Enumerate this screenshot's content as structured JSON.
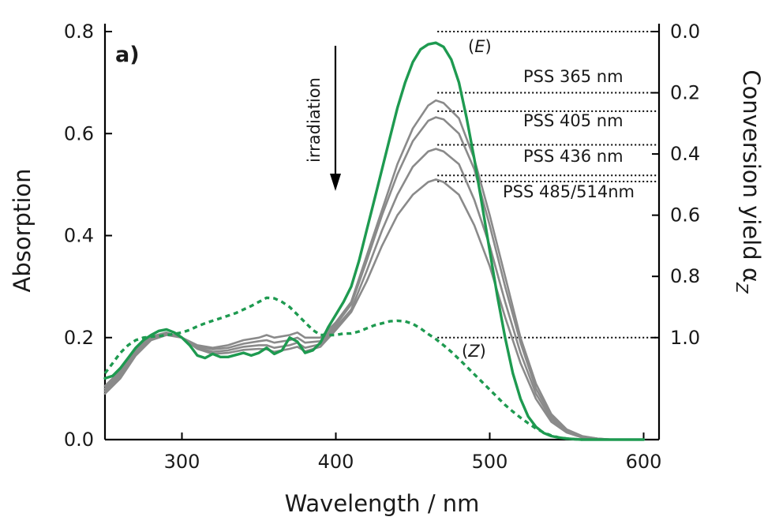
{
  "chart_data": {
    "type": "line",
    "panel_label": "a)",
    "xlabel": "Wavelength / nm",
    "ylabel": "Absorption",
    "y2label_main": "Conversion yield α",
    "y2label_sub": "Z",
    "xlim": [
      250,
      610
    ],
    "ylim": [
      0,
      0.8
    ],
    "y2lim": [
      0.0,
      1.0
    ],
    "xticks": [
      300,
      400,
      500,
      600
    ],
    "yticks": [
      0.0,
      0.2,
      0.4,
      0.6,
      0.8
    ],
    "y2ticks": [
      0.0,
      0.2,
      0.4,
      0.6,
      0.8,
      1.0
    ],
    "arrow_label": "irradiation",
    "colors": {
      "green": "#1e9a50",
      "gray": "#8a8a8a",
      "black": "#000000"
    },
    "series": [
      {
        "name": "(E)",
        "color": "#1e9a50",
        "style": "solid",
        "x": [
          250,
          255,
          260,
          265,
          270,
          275,
          280,
          285,
          290,
          295,
          300,
          305,
          310,
          315,
          320,
          325,
          330,
          335,
          340,
          345,
          350,
          355,
          360,
          365,
          370,
          375,
          380,
          385,
          390,
          395,
          400,
          405,
          410,
          415,
          420,
          425,
          430,
          435,
          440,
          445,
          450,
          455,
          460,
          465,
          470,
          475,
          480,
          485,
          490,
          495,
          500,
          505,
          510,
          515,
          520,
          525,
          530,
          535,
          540,
          545,
          550,
          555,
          560,
          570,
          580,
          590,
          600
        ],
        "y": [
          0.12,
          0.125,
          0.14,
          0.16,
          0.18,
          0.195,
          0.205,
          0.213,
          0.216,
          0.21,
          0.2,
          0.185,
          0.165,
          0.16,
          0.168,
          0.162,
          0.162,
          0.166,
          0.17,
          0.165,
          0.17,
          0.18,
          0.168,
          0.175,
          0.2,
          0.192,
          0.17,
          0.175,
          0.19,
          0.22,
          0.245,
          0.27,
          0.3,
          0.35,
          0.41,
          0.47,
          0.53,
          0.59,
          0.65,
          0.7,
          0.74,
          0.765,
          0.775,
          0.778,
          0.77,
          0.745,
          0.7,
          0.63,
          0.55,
          0.46,
          0.37,
          0.28,
          0.2,
          0.13,
          0.08,
          0.045,
          0.025,
          0.013,
          0.007,
          0.004,
          0.002,
          0.001,
          0.0,
          0.0,
          0.0,
          0.0,
          0.0
        ]
      },
      {
        "name": "(Z)",
        "color": "#1e9a50",
        "style": "dotted",
        "x": [
          250,
          255,
          260,
          265,
          270,
          275,
          280,
          285,
          290,
          295,
          300,
          305,
          310,
          315,
          320,
          325,
          330,
          335,
          340,
          345,
          350,
          355,
          360,
          365,
          370,
          375,
          380,
          385,
          390,
          395,
          400,
          405,
          410,
          415,
          420,
          425,
          430,
          435,
          440,
          445,
          450,
          455,
          460,
          465,
          470,
          475,
          480,
          485,
          490,
          495,
          500,
          505,
          510,
          515,
          520,
          525,
          530,
          535,
          540,
          545,
          550,
          555,
          560
        ],
        "y": [
          0.13,
          0.15,
          0.17,
          0.185,
          0.195,
          0.2,
          0.202,
          0.203,
          0.205,
          0.207,
          0.21,
          0.215,
          0.222,
          0.228,
          0.233,
          0.238,
          0.243,
          0.248,
          0.255,
          0.262,
          0.27,
          0.278,
          0.277,
          0.27,
          0.26,
          0.245,
          0.23,
          0.215,
          0.205,
          0.205,
          0.205,
          0.208,
          0.208,
          0.212,
          0.218,
          0.224,
          0.228,
          0.232,
          0.233,
          0.232,
          0.227,
          0.218,
          0.207,
          0.197,
          0.185,
          0.172,
          0.158,
          0.143,
          0.128,
          0.113,
          0.098,
          0.083,
          0.068,
          0.055,
          0.043,
          0.032,
          0.022,
          0.014,
          0.008,
          0.004,
          0.002,
          0.001,
          0.0
        ]
      },
      {
        "name": "PSS 365 nm",
        "color": "#8a8a8a",
        "style": "solid",
        "x": [
          250,
          260,
          270,
          280,
          290,
          300,
          310,
          320,
          330,
          340,
          350,
          355,
          360,
          370,
          375,
          380,
          390,
          400,
          410,
          420,
          430,
          440,
          450,
          460,
          465,
          470,
          480,
          490,
          500,
          510,
          520,
          530,
          540,
          550,
          560,
          570,
          580,
          600
        ],
        "y": [
          0.09,
          0.12,
          0.165,
          0.195,
          0.205,
          0.2,
          0.185,
          0.18,
          0.185,
          0.195,
          0.2,
          0.205,
          0.2,
          0.205,
          0.21,
          0.2,
          0.2,
          0.23,
          0.27,
          0.36,
          0.45,
          0.54,
          0.61,
          0.655,
          0.665,
          0.66,
          0.63,
          0.55,
          0.44,
          0.32,
          0.2,
          0.11,
          0.05,
          0.02,
          0.007,
          0.002,
          0.0,
          0.0
        ]
      },
      {
        "name": "PSS 405 nm",
        "color": "#8a8a8a",
        "style": "solid",
        "x": [
          250,
          260,
          270,
          280,
          290,
          300,
          310,
          320,
          330,
          340,
          350,
          355,
          360,
          370,
          375,
          380,
          390,
          400,
          410,
          420,
          430,
          440,
          450,
          460,
          465,
          470,
          480,
          490,
          500,
          510,
          520,
          530,
          540,
          550,
          560,
          570,
          580,
          600
        ],
        "y": [
          0.095,
          0.125,
          0.17,
          0.198,
          0.207,
          0.2,
          0.183,
          0.177,
          0.18,
          0.188,
          0.193,
          0.195,
          0.19,
          0.195,
          0.2,
          0.19,
          0.193,
          0.225,
          0.265,
          0.35,
          0.44,
          0.52,
          0.585,
          0.625,
          0.632,
          0.628,
          0.6,
          0.53,
          0.42,
          0.3,
          0.19,
          0.1,
          0.045,
          0.018,
          0.006,
          0.002,
          0.0,
          0.0
        ]
      },
      {
        "name": "PSS 436 nm",
        "color": "#8a8a8a",
        "style": "solid",
        "x": [
          250,
          260,
          270,
          280,
          290,
          300,
          310,
          320,
          330,
          340,
          350,
          355,
          360,
          370,
          375,
          380,
          390,
          400,
          410,
          420,
          430,
          440,
          450,
          460,
          465,
          470,
          480,
          490,
          500,
          510,
          520,
          530,
          540,
          550,
          560,
          570,
          580,
          600
        ],
        "y": [
          0.1,
          0.13,
          0.175,
          0.2,
          0.208,
          0.2,
          0.18,
          0.172,
          0.175,
          0.182,
          0.185,
          0.185,
          0.18,
          0.185,
          0.19,
          0.18,
          0.187,
          0.22,
          0.255,
          0.33,
          0.41,
          0.48,
          0.535,
          0.565,
          0.57,
          0.565,
          0.54,
          0.47,
          0.38,
          0.27,
          0.17,
          0.09,
          0.04,
          0.016,
          0.005,
          0.001,
          0.0,
          0.0
        ]
      },
      {
        "name": "PSS 485/514nm",
        "color": "#8a8a8a",
        "style": "solid",
        "x": [
          250,
          260,
          270,
          280,
          290,
          300,
          310,
          320,
          330,
          340,
          350,
          355,
          360,
          370,
          375,
          380,
          390,
          400,
          410,
          420,
          430,
          440,
          450,
          460,
          465,
          470,
          480,
          490,
          500,
          510,
          520,
          530,
          540,
          550,
          560,
          570,
          580,
          600
        ],
        "y": [
          0.105,
          0.135,
          0.178,
          0.202,
          0.21,
          0.2,
          0.178,
          0.168,
          0.17,
          0.176,
          0.178,
          0.177,
          0.172,
          0.178,
          0.182,
          0.173,
          0.182,
          0.215,
          0.25,
          0.31,
          0.38,
          0.44,
          0.48,
          0.505,
          0.51,
          0.505,
          0.48,
          0.42,
          0.34,
          0.24,
          0.15,
          0.08,
          0.035,
          0.014,
          0.004,
          0.001,
          0.0,
          0.0
        ]
      },
      {
        "name": "",
        "color": "#8a8a8a",
        "style": "solid",
        "x": [
          250,
          260,
          270,
          280,
          290,
          300,
          310,
          320,
          330,
          340,
          350,
          355,
          360,
          370,
          375,
          380,
          390,
          400,
          410,
          420,
          430,
          440,
          450,
          460,
          465,
          470,
          480,
          490,
          500,
          510,
          520,
          530,
          540,
          550,
          560,
          570,
          580,
          600
        ],
        "y": [
          0.08,
          0.11,
          0.16,
          0.19,
          0.205,
          0.2,
          0.185,
          0.18,
          0.185,
          0.19,
          0.19,
          0.19,
          0.185,
          0.19,
          0.195,
          0.185,
          0.19,
          0.225,
          0.265,
          0.32,
          0.39,
          0.44,
          0.475,
          0.495,
          0.5,
          0.495,
          0.47,
          0.41,
          0.33,
          0.235,
          0.145,
          0.075,
          0.033,
          0.013,
          0.004,
          0.001,
          0.0,
          0.0
        ]
      }
    ],
    "pss_markers": [
      {
        "label": "PSS 365 nm",
        "conversion": 0.2
      },
      {
        "label": "PSS 405 nm",
        "conversion": 0.26
      },
      {
        "label": "PSS 436 nm",
        "conversion": 0.37
      },
      {
        "label": "PSS 485/514nm",
        "conversion": 0.47
      },
      {
        "label": "",
        "conversion": 0.49
      }
    ],
    "end_markers": [
      {
        "label": "(E)",
        "conversion": 0.0
      },
      {
        "label": "(Z)",
        "conversion": 1.0
      }
    ]
  }
}
